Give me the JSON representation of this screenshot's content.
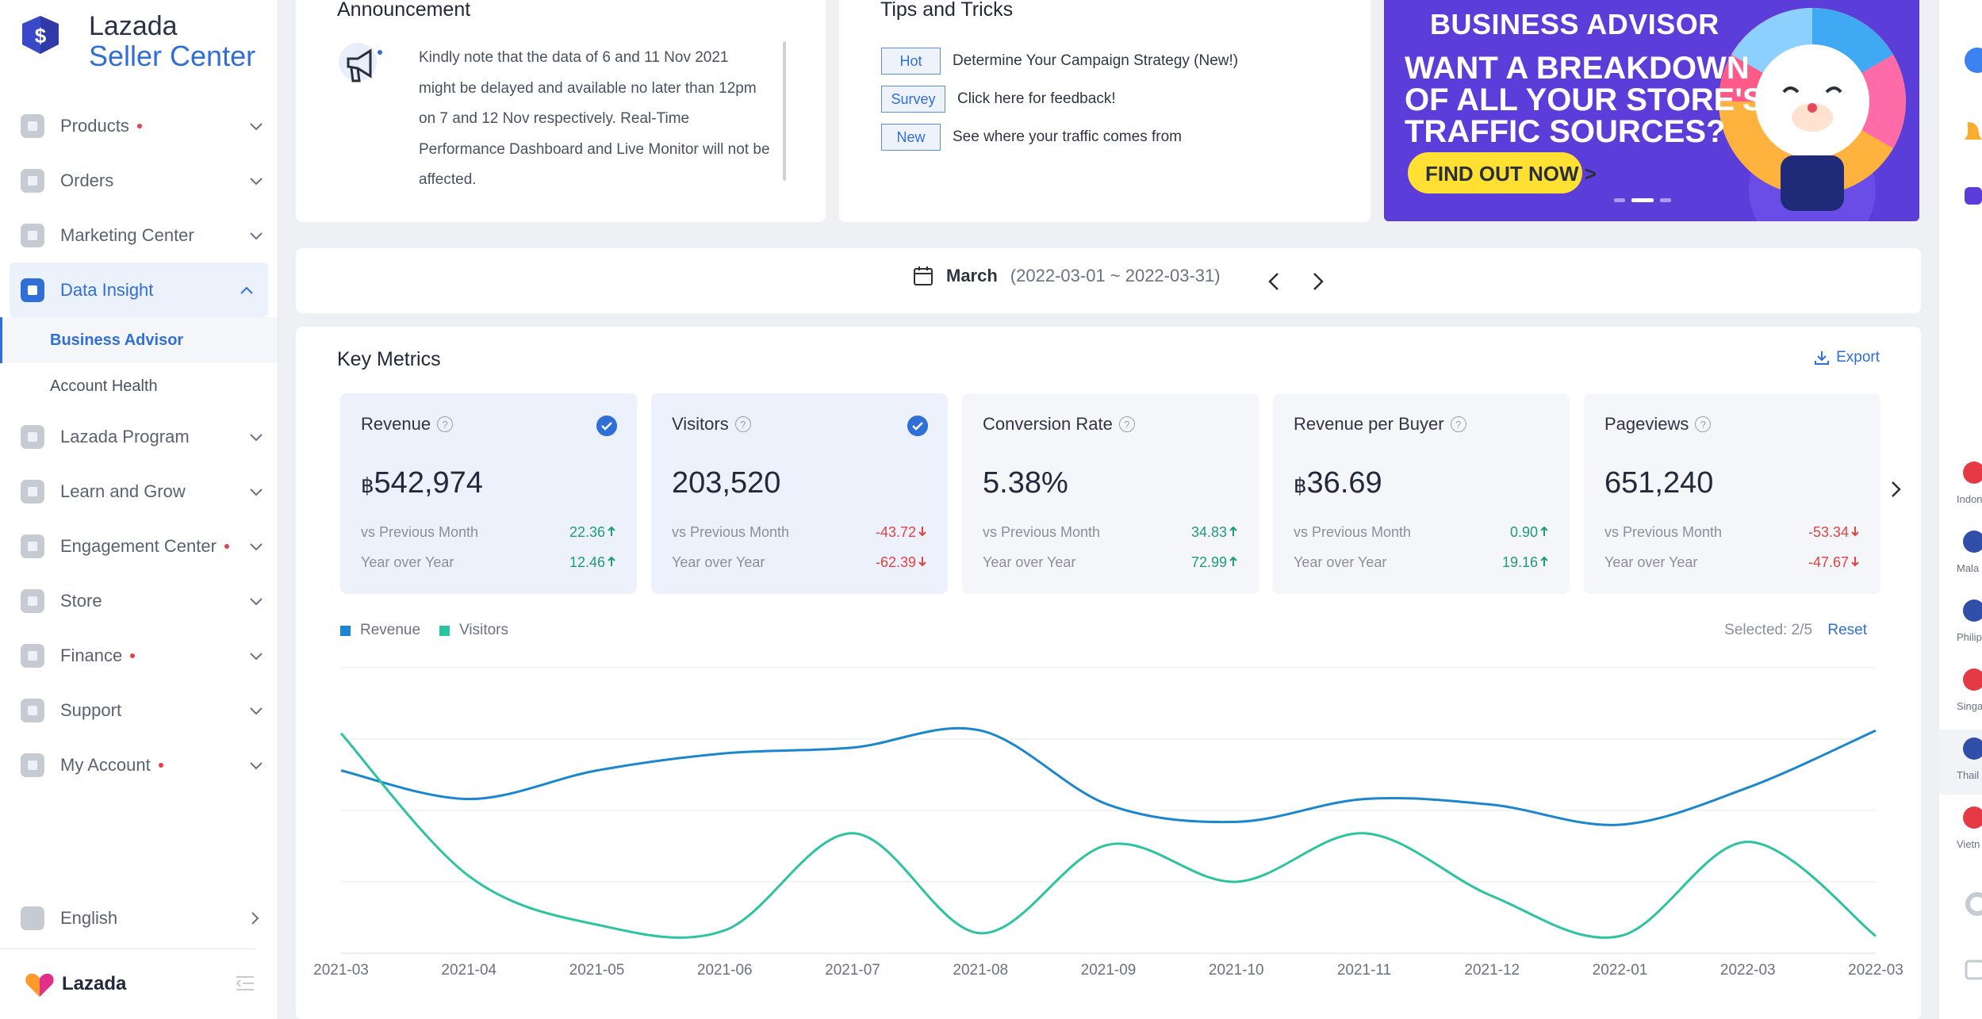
{
  "app": {
    "name_line1": "Lazada",
    "name_line2": "Seller Center"
  },
  "sidebar": {
    "items": [
      {
        "label": "Products",
        "dot": true,
        "icon": "products-icon"
      },
      {
        "label": "Orders",
        "dot": false,
        "icon": "orders-icon"
      },
      {
        "label": "Marketing Center",
        "dot": false,
        "icon": "marketing-icon"
      },
      {
        "label": "Data Insight",
        "dot": false,
        "icon": "data-insight-icon",
        "active": true
      },
      {
        "label": "Lazada Program",
        "dot": false,
        "icon": "dollar-icon"
      },
      {
        "label": "Learn and Grow",
        "dot": false,
        "icon": "learn-icon"
      },
      {
        "label": "Engagement Center",
        "dot": true,
        "icon": "engagement-icon"
      },
      {
        "label": "Store",
        "dot": false,
        "icon": "store-icon"
      },
      {
        "label": "Finance",
        "dot": true,
        "icon": "finance-icon"
      },
      {
        "label": "Support",
        "dot": false,
        "icon": "support-icon"
      },
      {
        "label": "My Account",
        "dot": true,
        "icon": "account-icon"
      }
    ],
    "subitems": [
      {
        "label": "Business Advisor",
        "active": true
      },
      {
        "label": "Account Health",
        "active": false
      }
    ],
    "language": "English",
    "footer_brand": "Lazada"
  },
  "announcement": {
    "title": "Announcement",
    "lines": [
      "Kindly note that the data of 6 and 11 Nov 2021",
      "might be delayed and available no later than 12pm",
      "on 7 and 12 Nov respectively. Real-Time",
      "Performance Dashboard and Live Monitor will not be",
      "affected."
    ]
  },
  "tips": {
    "title": "Tips and Tricks",
    "rows": [
      {
        "tag": "Hot",
        "text": "Determine Your Campaign Strategy (New!)"
      },
      {
        "tag": "Survey",
        "text": "Click here for feedback!"
      },
      {
        "tag": "New",
        "text": "See where your traffic comes from"
      }
    ]
  },
  "banner": {
    "brand": "BUSINESS ADVISOR",
    "line1": "WANT A BREAKDOWN",
    "line2": "OF ALL YOUR STORE'S",
    "line3": "TRAFFIC SOURCES?",
    "cta": "FIND OUT NOW >"
  },
  "date": {
    "month": "March",
    "range": "(2022-03-01 ~ 2022-03-31)"
  },
  "metrics": {
    "title": "Key Metrics",
    "export_label": "Export",
    "cards": [
      {
        "name": "Revenue",
        "currency": "฿",
        "value": "542,974",
        "selected": true,
        "vs_label": "vs Previous Month",
        "vs_value": "22.36",
        "vs_dir": "up",
        "yoy_label": "Year over Year",
        "yoy_value": "12.46",
        "yoy_dir": "up"
      },
      {
        "name": "Visitors",
        "currency": "",
        "value": "203,520",
        "selected": true,
        "vs_label": "vs Previous Month",
        "vs_value": "-43.72",
        "vs_dir": "down",
        "yoy_label": "Year over Year",
        "yoy_value": "-62.39",
        "yoy_dir": "down"
      },
      {
        "name": "Conversion Rate",
        "currency": "",
        "value": "5.38%",
        "selected": false,
        "vs_label": "vs Previous Month",
        "vs_value": "34.83",
        "vs_dir": "up",
        "yoy_label": "Year over Year",
        "yoy_value": "72.99",
        "yoy_dir": "up"
      },
      {
        "name": "Revenue per Buyer",
        "currency": "฿",
        "value": "36.69",
        "selected": false,
        "vs_label": "vs Previous Month",
        "vs_value": "0.90",
        "vs_dir": "up",
        "yoy_label": "Year over Year",
        "yoy_value": "19.16",
        "yoy_dir": "up"
      },
      {
        "name": "Pageviews",
        "currency": "",
        "value": "651,240",
        "selected": false,
        "vs_label": "vs Previous Month",
        "vs_value": "-53.34",
        "vs_dir": "down",
        "yoy_label": "Year over Year",
        "yoy_value": "-47.67",
        "yoy_dir": "down"
      }
    ],
    "selected_label": "Selected:",
    "selected_count": "2/5",
    "reset_label": "Reset"
  },
  "chart_data": {
    "type": "line",
    "x": [
      "2021-03",
      "2021-04",
      "2021-05",
      "2021-06",
      "2021-07",
      "2021-08",
      "2021-09",
      "2021-10",
      "2021-11",
      "2021-12",
      "2022-01",
      "2022-03",
      "2022-03"
    ],
    "series": [
      {
        "name": "Revenue",
        "color": "#1b86d0",
        "values": [
          0.64,
          0.54,
          0.64,
          0.7,
          0.72,
          0.78,
          0.52,
          0.46,
          0.54,
          0.52,
          0.45,
          0.58,
          0.78
        ]
      },
      {
        "name": "Visitors",
        "color": "#2cc3a0",
        "values": [
          0.77,
          0.27,
          0.1,
          0.08,
          0.42,
          0.07,
          0.38,
          0.25,
          0.42,
          0.2,
          0.06,
          0.39,
          0.06
        ]
      }
    ],
    "grid": true,
    "legend": "top-left"
  },
  "right_rail": {
    "countries": [
      "Indon",
      "Mala",
      "Philip",
      "Singa",
      "Thail",
      "Vietn"
    ]
  }
}
